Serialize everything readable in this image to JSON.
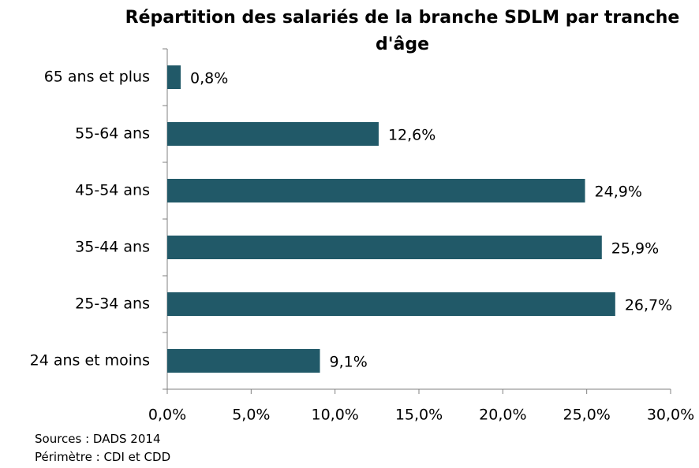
{
  "chart_data": {
    "type": "bar",
    "orientation": "horizontal",
    "title": "Répartition des salariés de la branche SDLM par tranche d'âge",
    "categories": [
      "65 ans et plus",
      "55-64 ans",
      "45-54 ans",
      "35-44 ans",
      "25-34 ans",
      "24 ans et moins"
    ],
    "values": [
      0.8,
      12.6,
      24.9,
      25.9,
      26.7,
      9.1
    ],
    "value_labels": [
      "0,8%",
      "12,6%",
      "24,9%",
      "25,9%",
      "26,7%",
      "9,1%"
    ],
    "color": "#215968",
    "xlim": [
      0,
      30
    ],
    "xticks": [
      {
        "value": 0,
        "label": "0,0%"
      },
      {
        "value": 5,
        "label": "5,0%"
      },
      {
        "value": 10,
        "label": "10,0%"
      },
      {
        "value": 15,
        "label": "15,0%"
      },
      {
        "value": 20,
        "label": "20,0%"
      },
      {
        "value": 25,
        "label": "25,0%"
      },
      {
        "value": 30,
        "label": "30,0%"
      }
    ],
    "grid": false,
    "notes": [
      "Sources : DADS 2014",
      "Périmètre : CDI et CDD"
    ]
  }
}
